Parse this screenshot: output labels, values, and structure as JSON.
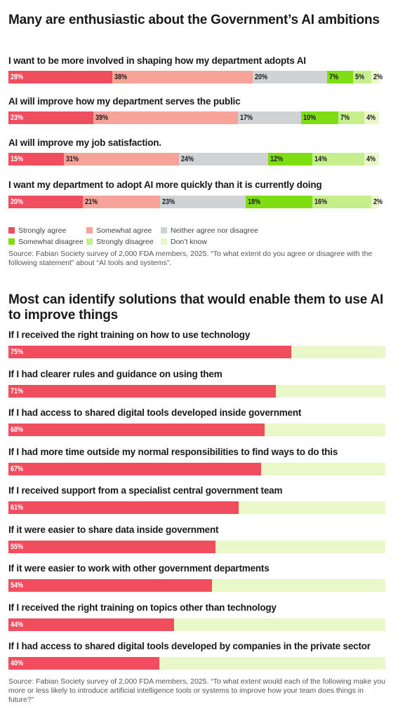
{
  "colors": {
    "strongly_agree": "#f04e5e",
    "somewhat_agree": "#f7a39a",
    "neither": "#cfd3d6",
    "somewhat_disagree": "#7fdd14",
    "strongly_disagree": "#c6ef8c",
    "dont_know": "#eaf7c8",
    "bar_track": "#eaf7c8"
  },
  "chart_data": [
    {
      "type": "bar",
      "stacked": true,
      "orientation": "horizontal",
      "title": "Many are enthusiastic about the Government’s AI ambitions",
      "categories": [
        "I want to be more involved in shaping how my department adopts AI",
        "AI will improve how my department serves the public",
        "AI will improve my job satisfaction.",
        "I want my department to adopt AI more quickly than it is currently doing"
      ],
      "series": [
        {
          "name": "Strongly agree",
          "values": [
            28,
            23,
            15,
            20
          ]
        },
        {
          "name": "Somewhat agree",
          "values": [
            38,
            39,
            31,
            21
          ]
        },
        {
          "name": "Neither agree nor disagree",
          "values": [
            20,
            17,
            24,
            23
          ]
        },
        {
          "name": "Somewhat disagree",
          "values": [
            7,
            10,
            12,
            18
          ]
        },
        {
          "name": "Strongly disagree",
          "values": [
            5,
            7,
            14,
            16
          ]
        },
        {
          "name": "Don’t know",
          "values": [
            2,
            4,
            4,
            2
          ]
        }
      ],
      "unit": "%",
      "legend": "bottom",
      "source": "Source: Fabian Society survey of 2,000 FDA members, 2025. “To what extent do you agree or disagree with the following statement” about “AI tools and systems”."
    },
    {
      "type": "bar",
      "orientation": "horizontal",
      "title": "Most can identify solutions that would enable them to use AI to improve things",
      "categories": [
        "If I received the right training on how to use technology",
        "If I had clearer rules and guidance on using them",
        "If I had access to shared digital tools developed inside government",
        "If I had more time outside my normal responsibilities to find ways to do this",
        "If I received support from a specialist central government team",
        "If it were easier to share data inside government",
        "If it were easier to work with other government departments",
        "If I received the right training on topics other than technology",
        "If I had access to shared digital tools developed by companies in the private sector"
      ],
      "values": [
        75,
        71,
        68,
        67,
        61,
        55,
        54,
        44,
        40
      ],
      "unit": "%",
      "xlim": [
        0,
        100
      ],
      "source": "Source: Fabian Society survey of 2,000 FDA members, 2025. “To what extent would each of the following make you more or less likely to introduce artificial intelligence tools or systems to improve how your team does things in future?”"
    }
  ]
}
